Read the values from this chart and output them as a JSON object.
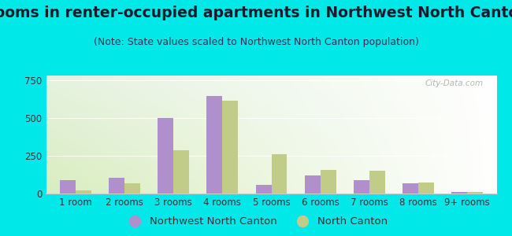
{
  "title": "Rooms in renter-occupied apartments in Northwest North Canton",
  "subtitle": "(Note: State values scaled to Northwest North Canton population)",
  "categories": [
    "1 room",
    "2 rooms",
    "3 rooms",
    "4 rooms",
    "5 rooms",
    "6 rooms",
    "7 rooms",
    "8 rooms",
    "9+ rooms"
  ],
  "northwest_values": [
    90,
    105,
    500,
    645,
    55,
    120,
    90,
    68,
    8
  ],
  "north_canton_values": [
    22,
    68,
    285,
    615,
    260,
    155,
    150,
    75,
    10
  ],
  "bar_color_nw": "#b090cc",
  "bar_color_nc": "#c0cc88",
  "background_outer": "#00e8e8",
  "ylim": [
    0,
    780
  ],
  "yticks": [
    0,
    250,
    500,
    750
  ],
  "legend_nw": "Northwest North Canton",
  "legend_nc": "North Canton",
  "title_fontsize": 13.5,
  "subtitle_fontsize": 9,
  "tick_fontsize": 8.5,
  "legend_fontsize": 9.5,
  "watermark": "City-Data.com"
}
